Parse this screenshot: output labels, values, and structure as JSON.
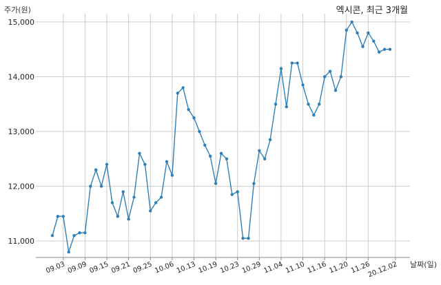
{
  "chart_data": {
    "type": "line",
    "title": "엑시콘, 최근 3개월",
    "ylabel": "주가(원)",
    "xlabel": "날짜(일)",
    "ylim": [
      10700,
      15150
    ],
    "yticks": [
      11000,
      12000,
      13000,
      14000,
      15000
    ],
    "ytick_labels": [
      "11,000",
      "12,000",
      "13,000",
      "14,000",
      "15,000"
    ],
    "xtick_labels": [
      "09.03",
      "09.09",
      "09.15",
      "09.21",
      "09.25",
      "10.06",
      "10.13",
      "10.19",
      "10.23",
      "10.29",
      "11.04",
      "11.10",
      "11.16",
      "11.20",
      "11.26",
      "20.12.02"
    ],
    "xtick_index": [
      2,
      6,
      10,
      14,
      18,
      22,
      26,
      30,
      34,
      38,
      42,
      46,
      50,
      54,
      58,
      63
    ],
    "grid": true,
    "color": "#2e7fb8",
    "values": [
      11100,
      11450,
      11450,
      10800,
      11100,
      11150,
      11150,
      12000,
      12300,
      12000,
      12400,
      11700,
      11450,
      11900,
      11400,
      11800,
      12600,
      12400,
      11550,
      11700,
      11800,
      12450,
      12200,
      13700,
      13800,
      13400,
      13250,
      13000,
      12750,
      12550,
      12050,
      12600,
      12500,
      11850,
      11900,
      11050,
      11050,
      12050,
      12650,
      12500,
      12850,
      13500,
      14150,
      13450,
      14250,
      14250,
      13850,
      13500,
      13300,
      13500,
      14000,
      14100,
      13750,
      14000,
      14850,
      15000,
      14800,
      14550,
      14800,
      14650,
      14450,
      14500,
      14500
    ]
  }
}
